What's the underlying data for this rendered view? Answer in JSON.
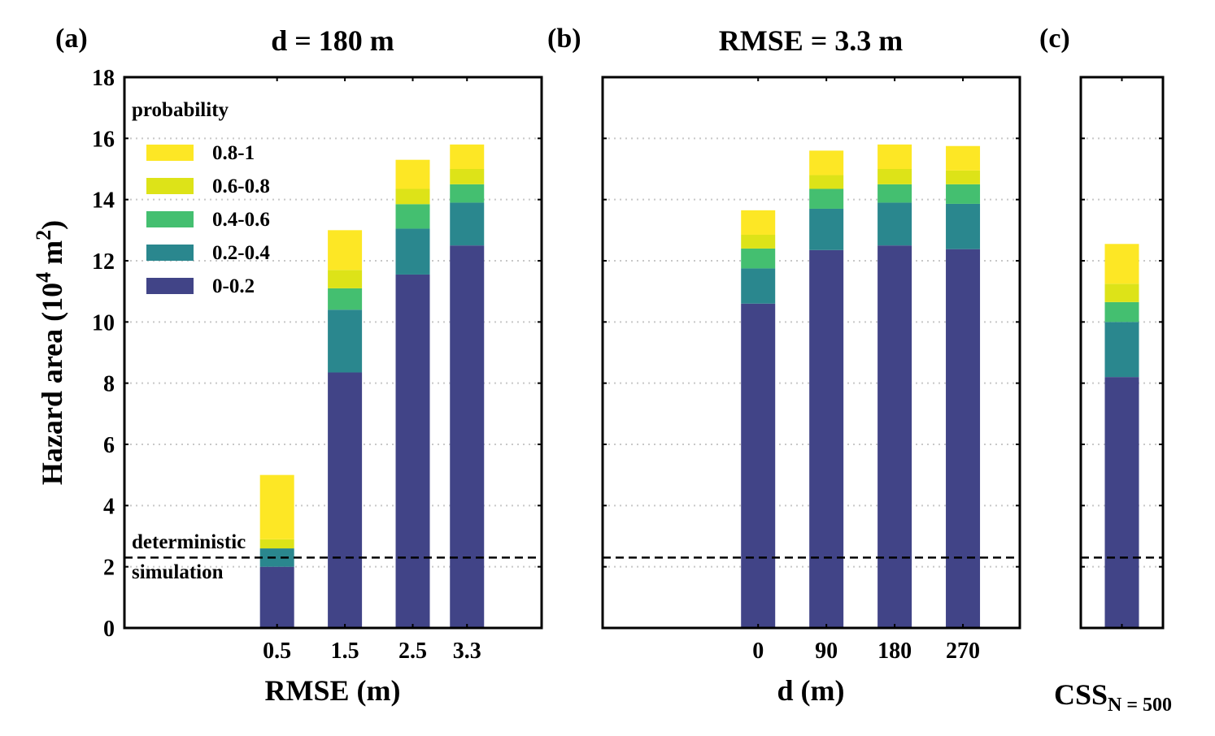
{
  "colors": {
    "0-0.2": "#414487",
    "0.2-0.4": "#2a878e",
    "0.4-0.6": "#44bf70",
    "0.6-0.8": "#dde318",
    "0.8-1": "#fde725",
    "grid": "#c8c8c8",
    "axis": "#000000"
  },
  "y_axis": {
    "label_main": "Hazard area (10",
    "label_sup1": "4",
    "label_mid": " m",
    "label_sup2": "2",
    "label_end": ")",
    "ylim": [
      0,
      18
    ],
    "ticks": [
      0,
      2,
      4,
      6,
      8,
      10,
      12,
      14,
      16,
      18
    ],
    "tick_labels": [
      "0",
      "2",
      "4",
      "6",
      "8",
      "10",
      "12",
      "14",
      "16",
      "18"
    ]
  },
  "legend": {
    "title": "probability",
    "entries": [
      {
        "label": "0.8-1",
        "key": "0.8-1"
      },
      {
        "label": "0.6-0.8",
        "key": "0.6-0.8"
      },
      {
        "label": "0.4-0.6",
        "key": "0.4-0.6"
      },
      {
        "label": "0.2-0.4",
        "key": "0.2-0.4"
      },
      {
        "label": "0-0.2",
        "key": "0-0.2"
      }
    ]
  },
  "deterministic": {
    "value": 2.3,
    "label_line1": "deterministic",
    "label_line2": "simulation"
  },
  "chart_data": [
    {
      "type": "bar",
      "stacked": true,
      "panel_label": "(a)",
      "title": "d = 180 m",
      "xlabel": "RMSE (m)",
      "x": [
        0.5,
        1.5,
        2.5,
        3.3
      ],
      "xlim": [
        -1.75,
        4.4
      ],
      "tick_labels": [
        "0.5",
        "1.5",
        "2.5",
        "3.3"
      ],
      "ylim": [
        0,
        18
      ],
      "series": [
        {
          "name": "0-0.2",
          "values": [
            2.0,
            8.35,
            11.55,
            12.5
          ]
        },
        {
          "name": "0.2-0.4",
          "values": [
            0.6,
            2.05,
            1.5,
            1.4
          ]
        },
        {
          "name": "0.4-0.6",
          "values": [
            0.0,
            0.7,
            0.8,
            0.6
          ]
        },
        {
          "name": "0.6-0.8",
          "values": [
            0.3,
            0.6,
            0.5,
            0.5
          ]
        },
        {
          "name": "0.8-1",
          "values": [
            2.1,
            1.3,
            0.95,
            0.8
          ]
        }
      ]
    },
    {
      "type": "bar",
      "stacked": true,
      "panel_label": "(b)",
      "title": "RMSE = 3.3 m",
      "xlabel": "d (m)",
      "x": [
        0,
        90,
        180,
        270
      ],
      "xlim": [
        -205,
        345
      ],
      "tick_labels": [
        "0",
        "90",
        "180",
        "270"
      ],
      "ylim": [
        0,
        18
      ],
      "series": [
        {
          "name": "0-0.2",
          "values": [
            10.6,
            12.35,
            12.5,
            12.38
          ]
        },
        {
          "name": "0.2-0.4",
          "values": [
            1.15,
            1.35,
            1.4,
            1.48
          ]
        },
        {
          "name": "0.4-0.6",
          "values": [
            0.65,
            0.65,
            0.6,
            0.64
          ]
        },
        {
          "name": "0.6-0.8",
          "values": [
            0.45,
            0.45,
            0.5,
            0.45
          ]
        },
        {
          "name": "0.8-1",
          "values": [
            0.8,
            0.8,
            0.8,
            0.8
          ]
        }
      ]
    },
    {
      "type": "bar",
      "stacked": true,
      "panel_label": "(c)",
      "title": "",
      "xlabel_main": "CSS",
      "xlabel_sub": "N = 500",
      "x": [
        0
      ],
      "xlim": [
        -0.5,
        0.5
      ],
      "tick_labels": [
        ""
      ],
      "ylim": [
        0,
        18
      ],
      "series": [
        {
          "name": "0-0.2",
          "values": [
            8.2
          ]
        },
        {
          "name": "0.2-0.4",
          "values": [
            1.8
          ]
        },
        {
          "name": "0.4-0.6",
          "values": [
            0.65
          ]
        },
        {
          "name": "0.6-0.8",
          "values": [
            0.6
          ]
        },
        {
          "name": "0.8-1",
          "values": [
            1.3
          ]
        }
      ]
    }
  ]
}
